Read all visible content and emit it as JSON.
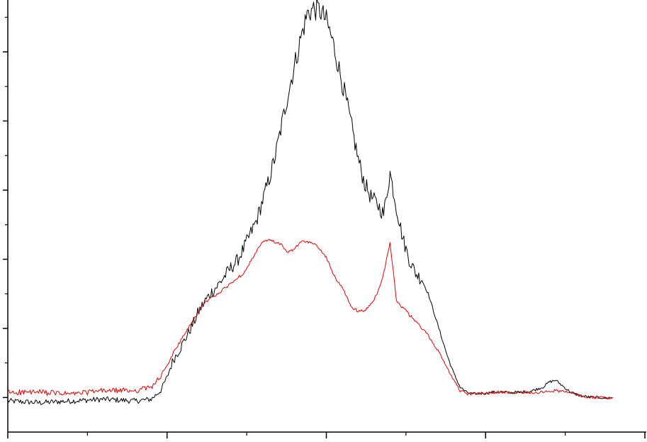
{
  "chart_data": {
    "type": "line",
    "title": "",
    "xlabel": "",
    "ylabel": "",
    "xlim": [
      0,
      100
    ],
    "ylim": [
      -1,
      11.5
    ],
    "x_major_ticks": [
      0,
      25,
      50,
      75,
      100
    ],
    "x_minor_ticks": [
      12.5,
      37.5,
      62.5,
      87.5
    ],
    "y_major_ticks": [
      0,
      2,
      4,
      6,
      8,
      10
    ],
    "y_minor_ticks": [
      1,
      3,
      5,
      7,
      9,
      11
    ],
    "grid": false,
    "legend": "none",
    "series": [
      {
        "color": "#000000",
        "x": [
          0,
          5,
          10,
          15,
          20,
          22.5,
          24,
          25,
          26,
          27,
          28,
          29,
          30,
          31,
          32,
          33,
          34,
          35,
          36,
          37,
          38,
          39,
          40,
          41,
          42,
          43,
          44,
          45,
          46,
          47,
          48,
          49,
          50,
          51,
          52,
          53,
          54,
          55,
          56,
          57,
          58,
          59,
          60,
          61,
          62,
          63,
          64,
          65,
          66,
          67,
          68,
          69,
          70,
          71,
          72,
          73,
          74,
          75,
          76,
          78,
          80,
          82,
          84,
          85,
          86,
          87,
          88,
          89,
          90,
          91,
          92,
          93,
          94,
          95
        ],
        "y": [
          -0.1,
          -0.15,
          -0.1,
          -0.05,
          -0.1,
          -0.05,
          0.2,
          0.6,
          1.1,
          1.4,
          1.75,
          2.1,
          2.5,
          2.8,
          3.05,
          3.25,
          3.5,
          3.75,
          3.95,
          4.3,
          4.7,
          5.1,
          5.7,
          6.3,
          7.0,
          7.9,
          8.8,
          9.6,
          10.4,
          11.1,
          11.25,
          11.2,
          10.9,
          10.3,
          9.5,
          8.7,
          7.8,
          6.9,
          6.2,
          5.8,
          5.6,
          5.3,
          6.5,
          5.5,
          4.6,
          4.0,
          3.6,
          3.4,
          3.0,
          2.4,
          1.8,
          1.2,
          0.7,
          0.3,
          0.15,
          0.1,
          0.12,
          0.12,
          0.15,
          0.15,
          0.15,
          0.18,
          0.3,
          0.45,
          0.5,
          0.35,
          0.2,
          0.1,
          0.05,
          0.02,
          0.0,
          0.0,
          -0.02,
          0.0
        ]
      },
      {
        "color": "#e00000",
        "x": [
          0,
          5,
          10,
          15,
          20,
          22.5,
          24,
          25,
          26,
          27,
          28,
          29,
          30,
          31,
          32,
          33,
          34,
          35,
          36,
          37,
          38,
          39,
          40,
          41,
          42,
          43,
          44,
          45,
          46,
          47,
          48,
          49,
          50,
          51,
          52,
          53,
          54,
          55,
          56,
          57,
          58,
          59,
          60,
          61,
          62,
          63,
          64,
          65,
          66,
          67,
          68,
          69,
          70,
          71,
          72,
          73,
          74,
          75,
          76,
          78,
          80,
          82,
          84,
          85,
          86,
          87,
          88,
          89,
          90,
          91,
          92,
          93,
          94,
          95
        ],
        "y": [
          0.15,
          0.15,
          0.1,
          0.2,
          0.2,
          0.3,
          0.6,
          0.9,
          1.3,
          1.6,
          1.9,
          2.2,
          2.5,
          2.75,
          2.9,
          3.0,
          3.15,
          3.3,
          3.45,
          3.6,
          3.9,
          4.2,
          4.5,
          4.55,
          4.5,
          4.4,
          4.2,
          4.3,
          4.5,
          4.5,
          4.45,
          4.3,
          4.05,
          3.6,
          3.3,
          3.0,
          2.6,
          2.5,
          2.5,
          2.7,
          3.0,
          3.6,
          4.5,
          2.8,
          2.6,
          2.4,
          2.2,
          2.0,
          1.8,
          1.5,
          1.2,
          0.85,
          0.5,
          0.2,
          0.1,
          0.1,
          0.12,
          0.12,
          0.15,
          0.15,
          0.15,
          0.15,
          0.15,
          0.18,
          0.2,
          0.18,
          0.15,
          0.1,
          0.05,
          0.02,
          0.0,
          0.0,
          -0.02,
          0.0
        ]
      }
    ]
  }
}
